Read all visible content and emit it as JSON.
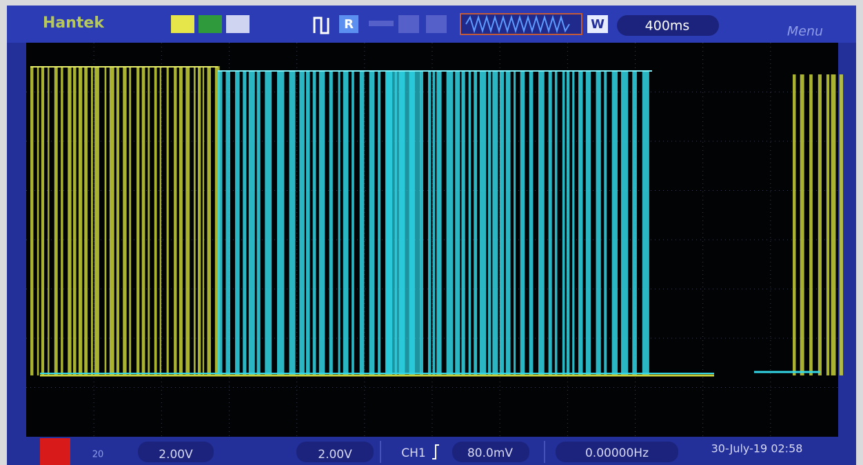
{
  "header": {
    "brand": "Hantek",
    "run_mode": "R",
    "mode": "W",
    "timebase": "400ms",
    "menu": "Menu"
  },
  "status": {
    "bandwidth": "20",
    "ch1_scale": "2.00V",
    "ch2_scale": "2.00V",
    "trigger_source": "CH1",
    "trigger_level": "80.0mV",
    "frequency": "0.00000Hz",
    "datetime": "30-July-19 02:58"
  }
}
